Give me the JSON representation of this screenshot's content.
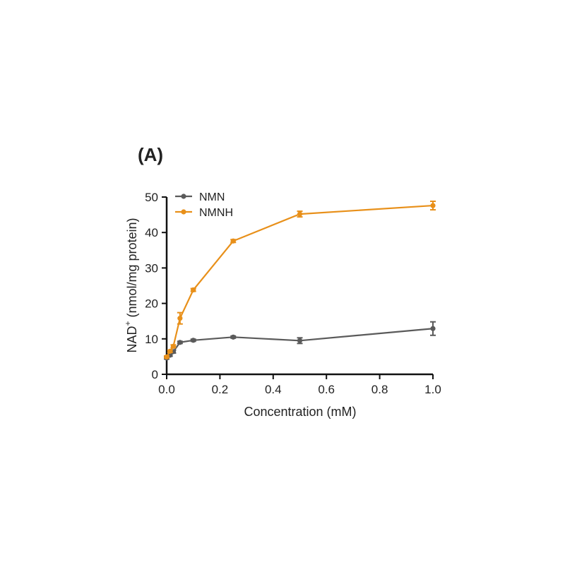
{
  "panel_label": "(A)",
  "chart_data": {
    "type": "line",
    "xlabel": "Concentration (mM)",
    "ylabel_main": "NAD",
    "ylabel_sup": "+",
    "ylabel_rest": " (nmol/mg protein)",
    "xlim": [
      0,
      1.0
    ],
    "ylim": [
      0,
      50
    ],
    "xticks": [
      0,
      0.2,
      0.4,
      0.6,
      0.8,
      1.0
    ],
    "xtick_labels": [
      "0.0",
      "0.2",
      "0.4",
      "0.6",
      "0.8",
      "1.0"
    ],
    "yticks": [
      0,
      10,
      20,
      30,
      40,
      50
    ],
    "ytick_labels": [
      "0",
      "10",
      "20",
      "30",
      "40",
      "50"
    ],
    "grid": false,
    "legend_position": "top-left",
    "series": [
      {
        "name": "NMN",
        "color": "#5a5a5a",
        "x": [
          0,
          0.0125,
          0.025,
          0.05,
          0.1,
          0.25,
          0.5,
          1.0
        ],
        "y": [
          4.6,
          5.4,
          6.4,
          9.0,
          9.6,
          10.5,
          9.5,
          12.9
        ],
        "err": [
          0.3,
          0.3,
          0.4,
          0.3,
          0.3,
          0.3,
          0.8,
          1.9
        ]
      },
      {
        "name": "NMNH",
        "color": "#e8901a",
        "x": [
          0,
          0.0125,
          0.025,
          0.05,
          0.1,
          0.25,
          0.5,
          1.0
        ],
        "y": [
          4.9,
          6.5,
          7.9,
          15.8,
          23.8,
          37.6,
          45.2,
          47.6
        ],
        "err": [
          0.3,
          0.3,
          0.4,
          1.6,
          0.4,
          0.4,
          0.8,
          1.2
        ]
      }
    ]
  }
}
